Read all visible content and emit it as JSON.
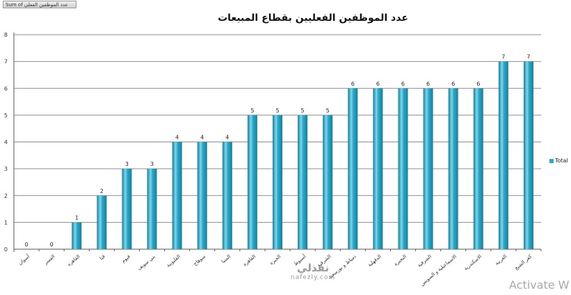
{
  "field_button": "Sum of عدد الموظفين الفعلي",
  "watermark": {
    "main": "نفذلي",
    "sub": "nafezly.com"
  },
  "activate_text": "Activate W",
  "colors": {
    "bar": "#2aa9cb",
    "bar_light": "#7fd6ec",
    "bar_dark": "#177f99",
    "grid": "#8c8c8c",
    "axis": "#555555"
  },
  "chart_data": {
    "type": "bar",
    "title": "عدد الموظفين الفعليين بقطاع المبيعات",
    "categories": [
      "أسوان",
      "الفسر",
      "القاهره",
      "قنا",
      "فيوم",
      "بني سويف",
      "القليوبية",
      "سوهاج",
      "المنيا",
      "القاهرة",
      "الجيزة",
      "أسيوط",
      "الشرقية",
      "دمياط و بورسعيد",
      "الدقهلية",
      "البحيرة",
      "الشرقية",
      "الاسماعيلية و السويس",
      "الاسكندرية",
      "الغربية",
      "كفر الشيخ"
    ],
    "series": [
      {
        "name": "Total",
        "values": [
          0,
          0,
          1,
          2,
          3,
          3,
          4,
          4,
          4,
          5,
          5,
          5,
          5,
          6,
          6,
          6,
          6,
          6,
          6,
          7,
          7
        ]
      }
    ],
    "ylim": [
      0,
      8
    ],
    "yticks": [
      0,
      1,
      2,
      3,
      4,
      5,
      6,
      7,
      8
    ],
    "grid": true,
    "legend": "right",
    "xlabel": "",
    "ylabel": ""
  }
}
